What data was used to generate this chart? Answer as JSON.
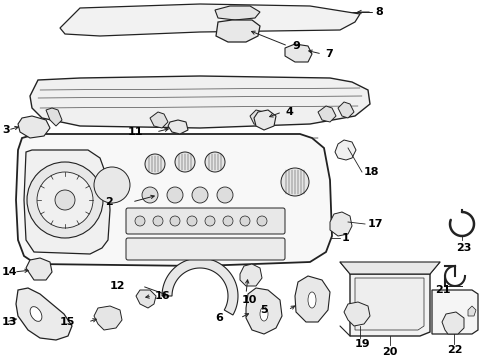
{
  "bg_color": "#ffffff",
  "line_color": "#222222",
  "label_color": "#000000",
  "figsize": [
    4.9,
    3.6
  ],
  "dpi": 100,
  "xlim": [
    0,
    490
  ],
  "ylim": [
    0,
    360
  ]
}
